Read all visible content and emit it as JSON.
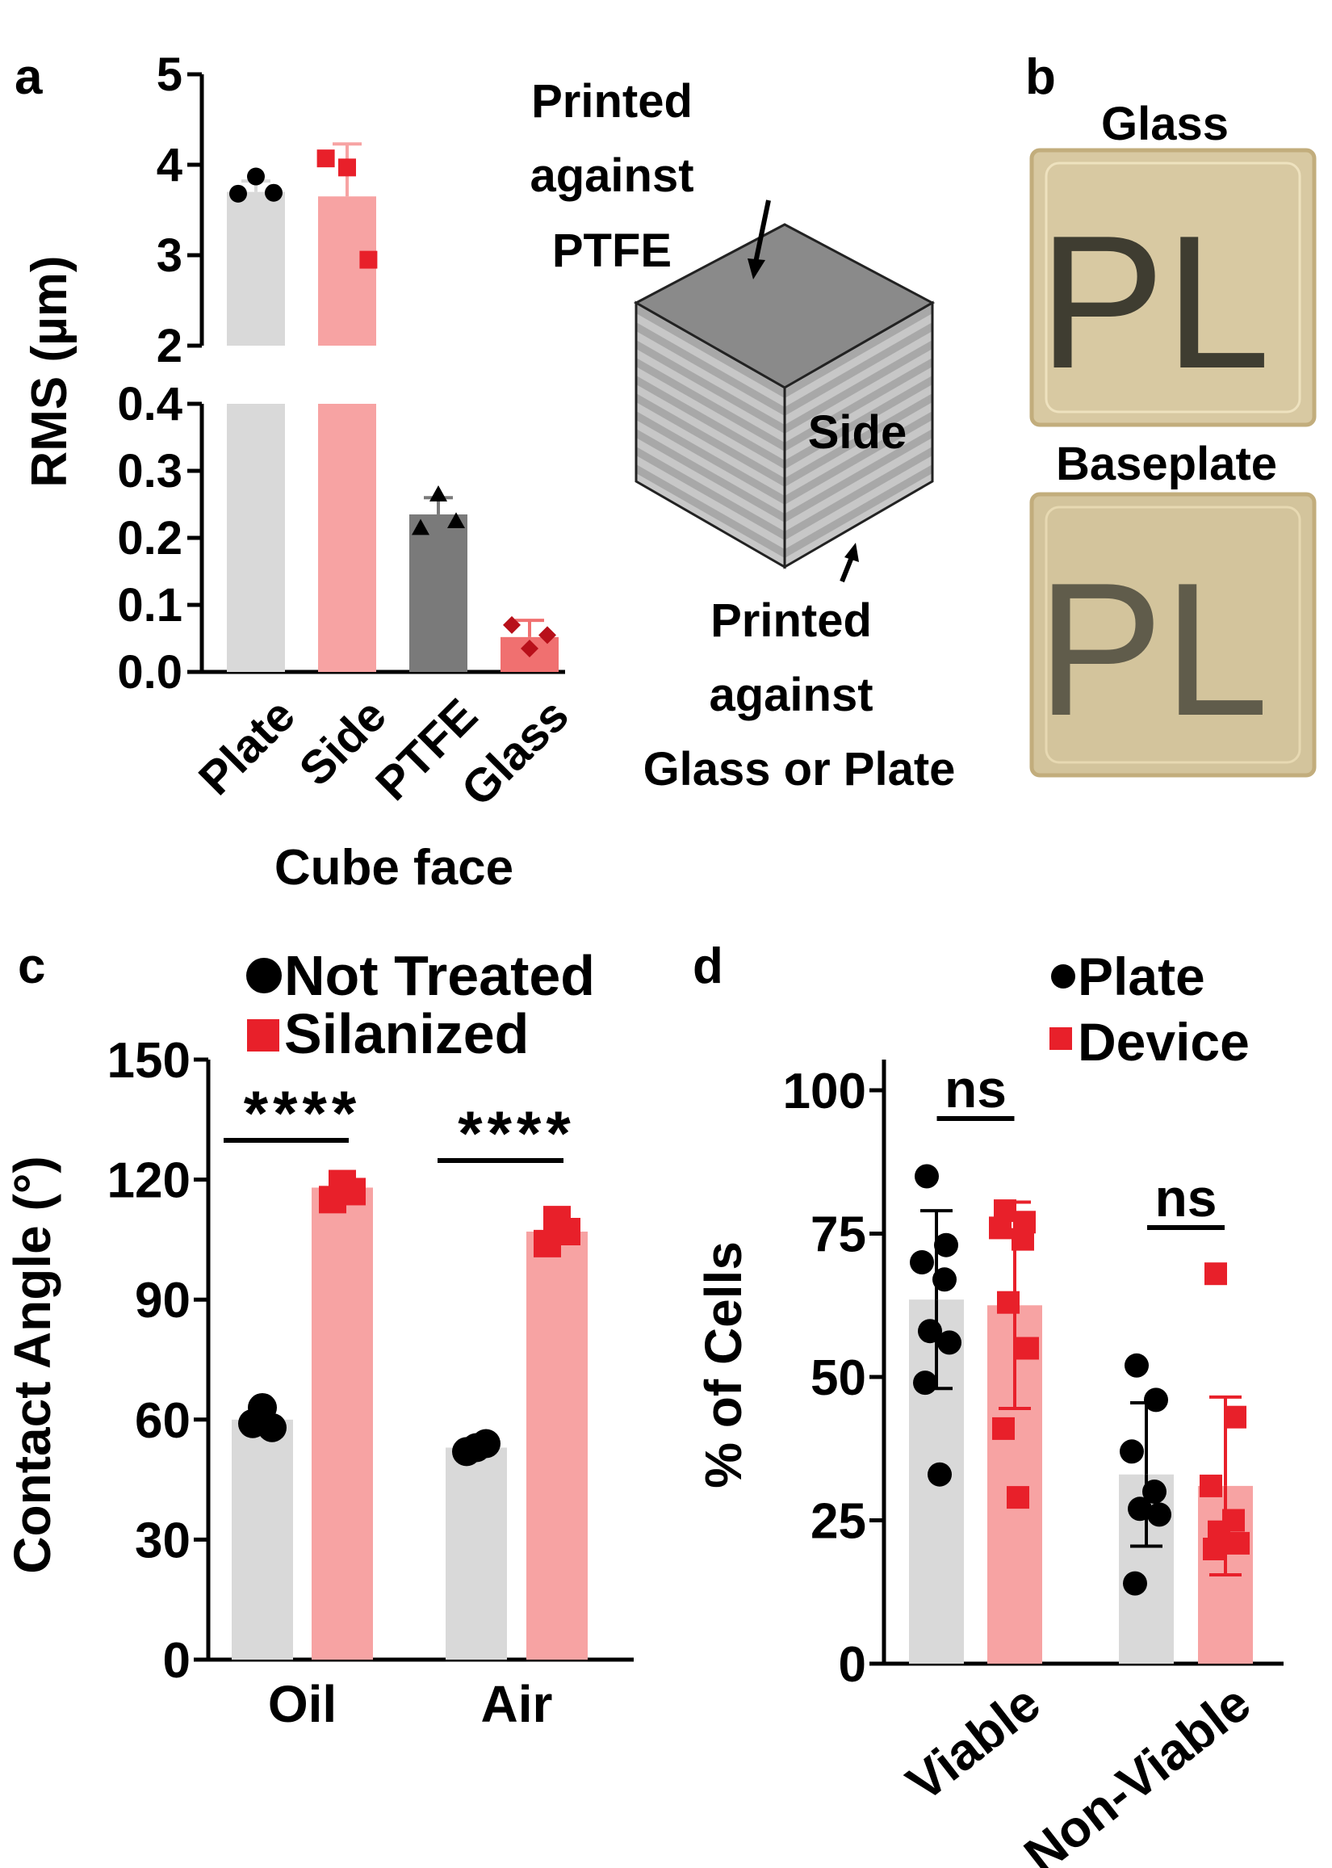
{
  "colors": {
    "gray_bar": "#d9d9d9",
    "pink_bar": "#f7a3a3",
    "dark_gray_bar": "#7a7a7a",
    "red_bar": "#f07070",
    "black": "#000000",
    "red_marker": "#e8202a",
    "dark_red_marker": "#b8101a",
    "cube_top": "#8a8a8a",
    "cube_face": "#a8a8a8",
    "stripe": "#c7c7c7",
    "photo_bg": "#d8c9a2",
    "photo_border": "#c2ad7c",
    "ink": "#2a2a22"
  },
  "labels": {
    "a": "a",
    "b": "b",
    "c": "c",
    "d": "d"
  },
  "chart_data": [
    {
      "id": "a",
      "type": "bar",
      "ylabel": "RMS (µm)",
      "xlabel": "Cube face",
      "categories": [
        "Plate",
        "Side",
        "PTFE",
        "Glass"
      ],
      "values": [
        3.7,
        3.65,
        0.235,
        0.052
      ],
      "errors": [
        0.12,
        0.58,
        0.025,
        0.025
      ],
      "points": [
        [
          3.68,
          3.87,
          3.69
        ],
        [
          4.07,
          3.97,
          2.95
        ],
        [
          0.215,
          0.265,
          0.225
        ],
        [
          0.07,
          0.035,
          0.055
        ]
      ],
      "markers": [
        "circle",
        "square",
        "triangle",
        "diamond"
      ],
      "axis_break": {
        "lower_ylim": [
          0,
          0.4
        ],
        "upper_ylim": [
          2,
          5
        ]
      },
      "lower_ticks": [
        "0.0",
        "0.1",
        "0.2",
        "0.3",
        "0.4"
      ],
      "upper_ticks": [
        "2",
        "3",
        "4",
        "5"
      ]
    },
    {
      "id": "c",
      "type": "bar",
      "ylabel": "Contact Angle (°)",
      "xlabel": "",
      "categories": [
        "Oil",
        "Air"
      ],
      "legend": [
        "Not Treated",
        "Silanized"
      ],
      "series": [
        {
          "name": "Not Treated",
          "values": [
            60,
            53
          ],
          "points": [
            [
              59,
              63,
              58
            ],
            [
              52,
              53,
              54
            ]
          ]
        },
        {
          "name": "Silanized",
          "values": [
            118,
            107
          ],
          "points": [
            [
              115,
              119,
              117
            ],
            [
              104,
              110,
              107
            ]
          ]
        }
      ],
      "ylim": [
        0,
        150
      ],
      "ticks": [
        "0",
        "30",
        "60",
        "90",
        "120",
        "150"
      ],
      "significance": [
        "****",
        "****"
      ]
    },
    {
      "id": "d",
      "type": "bar",
      "ylabel": "% of Cells",
      "xlabel": "",
      "categories": [
        "Viable",
        "Non-Viable"
      ],
      "legend": [
        "Plate",
        "Device"
      ],
      "series": [
        {
          "name": "Plate",
          "values": [
            63.5,
            33
          ],
          "errors": [
            15.5,
            12.5
          ],
          "points": [
            [
              85,
              73,
              70,
              67,
              58,
              56,
              49,
              33
            ],
            [
              52,
              46,
              37,
              30,
              27,
              26,
              14
            ]
          ]
        },
        {
          "name": "Device",
          "values": [
            62.5,
            31
          ],
          "errors": [
            18,
            15.5
          ],
          "points": [
            [
              79,
              77,
              76,
              74,
              63,
              55,
              41,
              29
            ],
            [
              68,
              43,
              31,
              25,
              23,
              21,
              20
            ]
          ]
        }
      ],
      "ylim": [
        0,
        100
      ],
      "ticks": [
        "0",
        "25",
        "50",
        "75",
        "100"
      ],
      "significance": [
        "ns",
        "ns"
      ]
    }
  ],
  "diagram": {
    "top_label": [
      "Printed",
      "against",
      "PTFE"
    ],
    "side_label": "Side",
    "bottom_label": [
      "Printed",
      "against",
      "Glass or Plate"
    ]
  },
  "panel_b": {
    "top_title": "Glass",
    "bottom_title": "Baseplate",
    "photo_text": "PL"
  }
}
